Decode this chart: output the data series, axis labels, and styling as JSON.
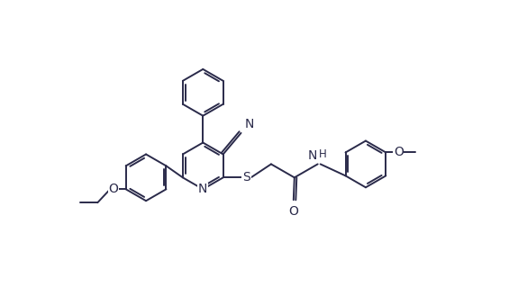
{
  "bg_color": "#ffffff",
  "line_color": "#2a2a4a",
  "line_width": 1.4,
  "font_size": 10,
  "figsize": [
    5.65,
    3.29
  ],
  "dpi": 100,
  "xlim": [
    0,
    11
  ],
  "ylim": [
    0,
    6.5
  ]
}
